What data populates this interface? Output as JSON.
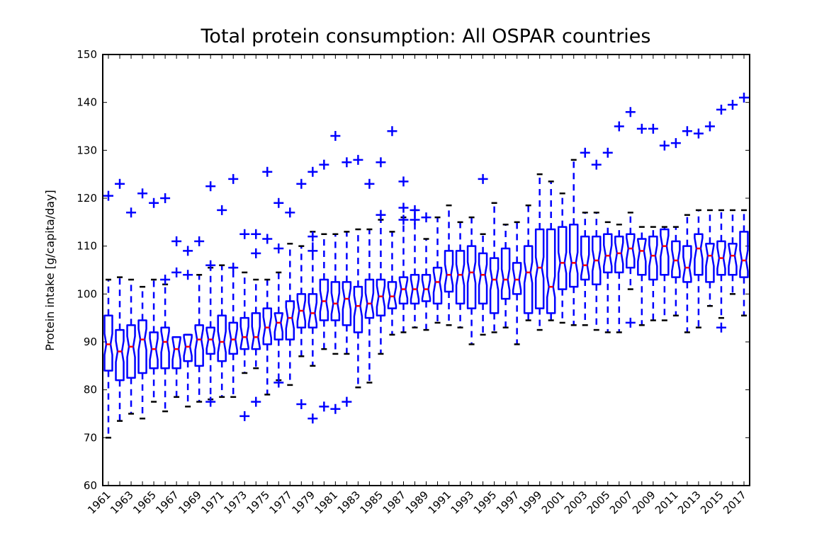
{
  "chart_data": {
    "type": "boxplot",
    "title": "Total protein consumption: All OSPAR countries",
    "xlabel": "",
    "ylabel": "Protein intake [g/capita/day]",
    "ylim": [
      60,
      150
    ],
    "yticks": [
      60,
      70,
      80,
      90,
      100,
      110,
      120,
      130,
      140,
      150
    ],
    "xtick_labels": [
      "1961",
      "1963",
      "1965",
      "1967",
      "1969",
      "1971",
      "1973",
      "1975",
      "1977",
      "1979",
      "1981",
      "1983",
      "1985",
      "1987",
      "1989",
      "1991",
      "1993",
      "1995",
      "1997",
      "1999",
      "2001",
      "2003",
      "2005",
      "2007",
      "2009",
      "2011",
      "2013",
      "2015",
      "2017"
    ],
    "grid": false,
    "notched": true,
    "colors": {
      "box": "#0000ff",
      "median": "#ff0000",
      "cap": "#000000",
      "outlier": "#0000ff"
    },
    "boxes": [
      {
        "year": 1961,
        "whisker_low": 70,
        "q1": 84,
        "median": 89.5,
        "q3": 95.5,
        "whisker_high": 103,
        "outliers": [
          120.5
        ]
      },
      {
        "year": 1962,
        "whisker_low": 73.5,
        "q1": 82,
        "median": 88,
        "q3": 92.5,
        "whisker_high": 103.5,
        "outliers": [
          123
        ]
      },
      {
        "year": 1963,
        "whisker_low": 75,
        "q1": 82.5,
        "median": 89,
        "q3": 93.5,
        "whisker_high": 103,
        "outliers": [
          117
        ]
      },
      {
        "year": 1964,
        "whisker_low": 74,
        "q1": 83.5,
        "median": 90.5,
        "q3": 94.5,
        "whisker_high": 101.5,
        "outliers": [
          121
        ]
      },
      {
        "year": 1965,
        "whisker_low": 77.5,
        "q1": 84.5,
        "median": 88.5,
        "q3": 92,
        "whisker_high": 103,
        "outliers": [
          119
        ]
      },
      {
        "year": 1966,
        "whisker_low": 75.5,
        "q1": 84.5,
        "median": 90,
        "q3": 93,
        "whisker_high": 102,
        "outliers": [
          120,
          103
        ]
      },
      {
        "year": 1967,
        "whisker_low": 78.5,
        "q1": 84.5,
        "median": 88.5,
        "q3": 91,
        "whisker_high": 91,
        "outliers": [
          111,
          104.5
        ]
      },
      {
        "year": 1968,
        "whisker_low": 76.5,
        "q1": 86,
        "median": 89,
        "q3": 91.5,
        "whisker_high": 91.5,
        "outliers": [
          109,
          104
        ]
      },
      {
        "year": 1969,
        "whisker_low": 77.5,
        "q1": 85,
        "median": 90.5,
        "q3": 93.5,
        "whisker_high": 104,
        "outliers": [
          111
        ]
      },
      {
        "year": 1970,
        "whisker_low": 78,
        "q1": 87.5,
        "median": 90.5,
        "q3": 93,
        "whisker_high": 105.5,
        "outliers": [
          106,
          122.5,
          77.5
        ]
      },
      {
        "year": 1971,
        "whisker_low": 78.5,
        "q1": 86,
        "median": 90,
        "q3": 95.5,
        "whisker_high": 106,
        "outliers": [
          117.5
        ]
      },
      {
        "year": 1972,
        "whisker_low": 78.5,
        "q1": 87.5,
        "median": 90.5,
        "q3": 94,
        "whisker_high": 105.5,
        "outliers": [
          124,
          105.5
        ]
      },
      {
        "year": 1973,
        "whisker_low": 83.5,
        "q1": 88.5,
        "median": 91,
        "q3": 95,
        "whisker_high": 104.5,
        "outliers": [
          112.5,
          74.5
        ]
      },
      {
        "year": 1974,
        "whisker_low": 84.5,
        "q1": 88.5,
        "median": 91,
        "q3": 96,
        "whisker_high": 103,
        "outliers": [
          112.5,
          108.5,
          77.5
        ]
      },
      {
        "year": 1975,
        "whisker_low": 79,
        "q1": 89.5,
        "median": 93,
        "q3": 97,
        "whisker_high": 103,
        "outliers": [
          125.5,
          111.5
        ]
      },
      {
        "year": 1976,
        "whisker_low": 82,
        "q1": 90.5,
        "median": 94,
        "q3": 96,
        "whisker_high": 104.5,
        "outliers": [
          119,
          109.5,
          81.5
        ]
      },
      {
        "year": 1977,
        "whisker_low": 81,
        "q1": 90.5,
        "median": 95,
        "q3": 98.5,
        "whisker_high": 110.5,
        "outliers": [
          117
        ]
      },
      {
        "year": 1978,
        "whisker_low": 87,
        "q1": 93,
        "median": 96.5,
        "q3": 100,
        "whisker_high": 110,
        "outliers": [
          123,
          77
        ]
      },
      {
        "year": 1979,
        "whisker_low": 85,
        "q1": 93,
        "median": 96,
        "q3": 100,
        "whisker_high": 113,
        "outliers": [
          125.5,
          112,
          109,
          74
        ]
      },
      {
        "year": 1980,
        "whisker_low": 88.5,
        "q1": 94.5,
        "median": 98.5,
        "q3": 103,
        "whisker_high": 112.5,
        "outliers": [
          127,
          76.5
        ]
      },
      {
        "year": 1981,
        "whisker_low": 87.5,
        "q1": 94.5,
        "median": 98,
        "q3": 102.5,
        "whisker_high": 112.5,
        "outliers": [
          133,
          76
        ]
      },
      {
        "year": 1982,
        "whisker_low": 87.5,
        "q1": 93.5,
        "median": 99,
        "q3": 102.5,
        "whisker_high": 113,
        "outliers": [
          127.5,
          77.5
        ]
      },
      {
        "year": 1983,
        "whisker_low": 80.5,
        "q1": 92,
        "median": 97.5,
        "q3": 101.5,
        "whisker_high": 113.5,
        "outliers": [
          128
        ]
      },
      {
        "year": 1984,
        "whisker_low": 81.5,
        "q1": 95,
        "median": 98,
        "q3": 103,
        "whisker_high": 113.5,
        "outliers": [
          123
        ]
      },
      {
        "year": 1985,
        "whisker_low": 87.5,
        "q1": 95.5,
        "median": 99.5,
        "q3": 103,
        "whisker_high": 115.5,
        "outliers": [
          127.5,
          116.5
        ]
      },
      {
        "year": 1986,
        "whisker_low": 91.5,
        "q1": 97,
        "median": 99.5,
        "q3": 102.5,
        "whisker_high": 113,
        "outliers": [
          134
        ]
      },
      {
        "year": 1987,
        "whisker_low": 92,
        "q1": 98,
        "median": 101,
        "q3": 103.5,
        "whisker_high": 116,
        "outliers": [
          123.5,
          118,
          115.5
        ]
      },
      {
        "year": 1988,
        "whisker_low": 93,
        "q1": 98,
        "median": 101,
        "q3": 104,
        "whisker_high": 117.5,
        "outliers": [
          117.5,
          115.5
        ]
      },
      {
        "year": 1989,
        "whisker_low": 92.5,
        "q1": 98.5,
        "median": 101,
        "q3": 104,
        "whisker_high": 111.5,
        "outliers": [
          116
        ]
      },
      {
        "year": 1990,
        "whisker_low": 94,
        "q1": 98,
        "median": 102.5,
        "q3": 105.5,
        "whisker_high": 116,
        "outliers": []
      },
      {
        "year": 1991,
        "whisker_low": 93.5,
        "q1": 100.5,
        "median": 104,
        "q3": 109,
        "whisker_high": 118.5,
        "outliers": []
      },
      {
        "year": 1992,
        "whisker_low": 93,
        "q1": 98,
        "median": 104,
        "q3": 109,
        "whisker_high": 115,
        "outliers": []
      },
      {
        "year": 1993,
        "whisker_low": 89.5,
        "q1": 97,
        "median": 104.5,
        "q3": 110,
        "whisker_high": 116,
        "outliers": []
      },
      {
        "year": 1994,
        "whisker_low": 91.5,
        "q1": 98,
        "median": 104,
        "q3": 108.5,
        "whisker_high": 112.5,
        "outliers": [
          124
        ]
      },
      {
        "year": 1995,
        "whisker_low": 92,
        "q1": 96,
        "median": 103,
        "q3": 107.5,
        "whisker_high": 119,
        "outliers": []
      },
      {
        "year": 1996,
        "whisker_low": 93,
        "q1": 99,
        "median": 103,
        "q3": 109.5,
        "whisker_high": 114.5,
        "outliers": []
      },
      {
        "year": 1997,
        "whisker_low": 89.5,
        "q1": 100,
        "median": 103,
        "q3": 106.5,
        "whisker_high": 115,
        "outliers": []
      },
      {
        "year": 1998,
        "whisker_low": 94.5,
        "q1": 96,
        "median": 104.5,
        "q3": 110,
        "whisker_high": 118.5,
        "outliers": []
      },
      {
        "year": 1999,
        "whisker_low": 92.5,
        "q1": 97,
        "median": 105.5,
        "q3": 113.5,
        "whisker_high": 125,
        "outliers": []
      },
      {
        "year": 2000,
        "whisker_low": 94.5,
        "q1": 96,
        "median": 101.5,
        "q3": 113.5,
        "whisker_high": 123.5,
        "outliers": []
      },
      {
        "year": 2001,
        "whisker_low": 94,
        "q1": 101,
        "median": 106.5,
        "q3": 114,
        "whisker_high": 121,
        "outliers": []
      },
      {
        "year": 2002,
        "whisker_low": 93.5,
        "q1": 101.5,
        "median": 106.5,
        "q3": 114.5,
        "whisker_high": 128,
        "outliers": []
      },
      {
        "year": 2003,
        "whisker_low": 93.5,
        "q1": 103,
        "median": 106,
        "q3": 112,
        "whisker_high": 117,
        "outliers": [
          129.5
        ]
      },
      {
        "year": 2004,
        "whisker_low": 92.5,
        "q1": 102,
        "median": 107,
        "q3": 112,
        "whisker_high": 117,
        "outliers": [
          127
        ]
      },
      {
        "year": 2005,
        "whisker_low": 92,
        "q1": 104.5,
        "median": 108,
        "q3": 112.5,
        "whisker_high": 115,
        "outliers": [
          129.5
        ]
      },
      {
        "year": 2006,
        "whisker_low": 92,
        "q1": 104.5,
        "median": 108.5,
        "q3": 112,
        "whisker_high": 114.5,
        "outliers": [
          135
        ]
      },
      {
        "year": 2007,
        "whisker_low": 101,
        "q1": 105.5,
        "median": 109.5,
        "q3": 112.5,
        "whisker_high": 117,
        "outliers": [
          138,
          94
        ]
      },
      {
        "year": 2008,
        "whisker_low": 93.5,
        "q1": 104,
        "median": 109,
        "q3": 111.5,
        "whisker_high": 114,
        "outliers": [
          134.5
        ]
      },
      {
        "year": 2009,
        "whisker_low": 94.5,
        "q1": 103,
        "median": 108,
        "q3": 112,
        "whisker_high": 114,
        "outliers": [
          134.5
        ]
      },
      {
        "year": 2010,
        "whisker_low": 94.5,
        "q1": 104,
        "median": 110,
        "q3": 113.5,
        "whisker_high": 114,
        "outliers": [
          131
        ]
      },
      {
        "year": 2011,
        "whisker_low": 95.5,
        "q1": 103.5,
        "median": 107,
        "q3": 111,
        "whisker_high": 114,
        "outliers": [
          131.5
        ]
      },
      {
        "year": 2012,
        "whisker_low": 92,
        "q1": 102.5,
        "median": 105.5,
        "q3": 110,
        "whisker_high": 116.5,
        "outliers": [
          134
        ]
      },
      {
        "year": 2013,
        "whisker_low": 93,
        "q1": 104,
        "median": 109.5,
        "q3": 112.5,
        "whisker_high": 117.5,
        "outliers": [
          133.5
        ]
      },
      {
        "year": 2014,
        "whisker_low": 97.5,
        "q1": 102.5,
        "median": 108,
        "q3": 110.5,
        "whisker_high": 117.5,
        "outliers": [
          135
        ]
      },
      {
        "year": 2015,
        "whisker_low": 95,
        "q1": 104,
        "median": 107.5,
        "q3": 111,
        "whisker_high": 117.5,
        "outliers": [
          138.5,
          93
        ]
      },
      {
        "year": 2016,
        "whisker_low": 100,
        "q1": 104,
        "median": 108,
        "q3": 110.5,
        "whisker_high": 117.5,
        "outliers": [
          139.5
        ]
      },
      {
        "year": 2017,
        "whisker_low": 95.5,
        "q1": 103.5,
        "median": 107,
        "q3": 113,
        "whisker_high": 117.5,
        "outliers": [
          141
        ]
      }
    ]
  }
}
